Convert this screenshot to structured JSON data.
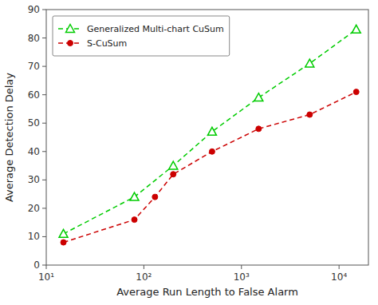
{
  "chart_data": {
    "type": "line",
    "xlabel": "Average Run Length to False Alarm",
    "ylabel": "Average Detection Delay",
    "log": "x",
    "grid": false,
    "legend": "upper left",
    "xlim": [
      10,
      20000
    ],
    "xticks": [
      {
        "value": 10,
        "label": "10¹"
      },
      {
        "value": 100,
        "label": "10²"
      },
      {
        "value": 1000,
        "label": "10³"
      },
      {
        "value": 10000,
        "label": "10⁴"
      }
    ],
    "ylim": [
      0,
      90
    ],
    "yticks": [
      0,
      10,
      20,
      30,
      40,
      50,
      60,
      70,
      80,
      90
    ],
    "series": [
      {
        "name": "Generalized Multi-chart CuSum",
        "color": "#00CC00",
        "marker": "triangle",
        "line_style": "dashed",
        "x": [
          15,
          80,
          200,
          500,
          1500,
          5000,
          15000
        ],
        "values": [
          11,
          24,
          35,
          47,
          59,
          71,
          83
        ]
      },
      {
        "name": "S-CuSum",
        "color": "#CC0000",
        "marker": "circle",
        "line_style": "dashed",
        "x": [
          15,
          80,
          130,
          200,
          500,
          1500,
          5000,
          15000
        ],
        "values": [
          8,
          16,
          24,
          32,
          40,
          48,
          53,
          61
        ]
      }
    ]
  }
}
